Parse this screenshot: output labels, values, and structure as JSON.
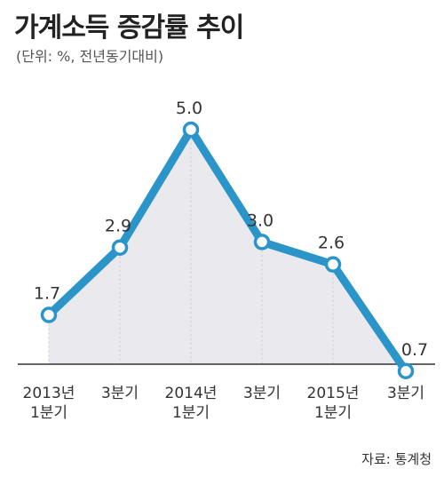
{
  "title": "가계소득 증감률 추이",
  "subtitle": "(단위: %, 전년동기대비)",
  "source": "자료: 통계청",
  "colors": {
    "line": "#2b95c9",
    "area": "#e9e9ee",
    "highlight_label": "#2b95c9"
  },
  "chart_data": {
    "type": "line",
    "title": "가계소득 증감률 추이",
    "ylabel": "",
    "xlabel": "",
    "categories": [
      [
        "2013년",
        "1분기"
      ],
      [
        "3분기"
      ],
      [
        "2014년",
        "1분기"
      ],
      [
        "3분기"
      ],
      [
        "2015년",
        "1분기"
      ],
      [
        "3분기"
      ]
    ],
    "series": [
      {
        "values": [
          1.7,
          2.9,
          5.0,
          3.0,
          2.6,
          0.7
        ]
      }
    ],
    "data_labels": [
      "1.7",
      "2.9",
      "5.0",
      "3.0",
      "2.6",
      "0.7"
    ],
    "ylim": [
      0,
      5.0
    ],
    "grid": false,
    "legend": "none"
  }
}
